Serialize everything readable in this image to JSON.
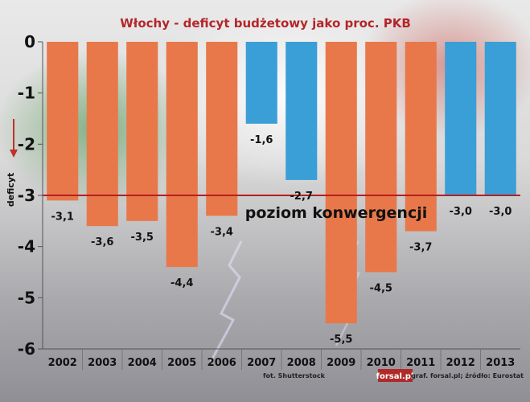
{
  "chart_data": {
    "type": "bar",
    "title": "Włochy - deficyt budżetowy jako proc. PKB",
    "ylabel": "deficyt",
    "categories": [
      "2002",
      "2003",
      "2004",
      "2005",
      "2006",
      "2007",
      "2008",
      "2009",
      "2010",
      "2011",
      "2012",
      "2013"
    ],
    "values": [
      -3.1,
      -3.6,
      -3.5,
      -4.4,
      -3.4,
      -1.6,
      -2.7,
      -5.5,
      -4.5,
      -3.7,
      -3.0,
      -3.0
    ],
    "data_labels": [
      "-3,1",
      "-3,6",
      "-3,5",
      "-4,4",
      "-3,4",
      "-1,6",
      "-2,7",
      "-5,5",
      "-4,5",
      "-3,7",
      "-3,0",
      "-3,0"
    ],
    "yticks": [
      0,
      -1,
      -2,
      -3,
      -4,
      -5,
      -6
    ],
    "ytick_labels": [
      "0",
      "-1",
      "-2",
      "-3",
      "-4",
      "-5",
      "-6"
    ],
    "ylim": [
      -6,
      0
    ],
    "reference_line": {
      "value": -3,
      "label": "poziom konwergencji",
      "color": "#b52020"
    },
    "colors": {
      "above_limit": "#3a9fd6",
      "below_limit": "#e8784a",
      "title": "#b3262a"
    },
    "grid": false,
    "legend": "none"
  },
  "credits": {
    "photo": "fot. Shutterstock",
    "logo": "forsal.pl",
    "source": "graf. forsal.pl; źródło: Eurostat"
  }
}
